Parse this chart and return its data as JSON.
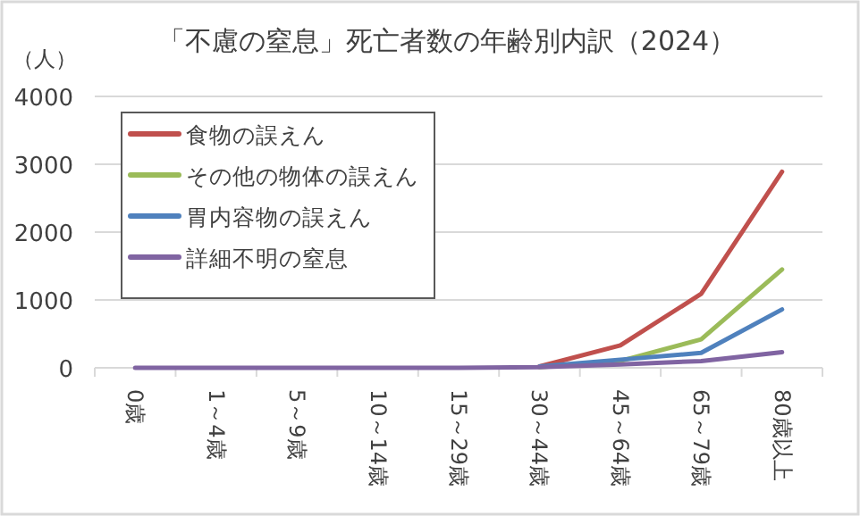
{
  "chart_data": {
    "type": "line",
    "title": "「不慮の窒息」死亡者数の年齢別内訳（2024）",
    "ylabel": "（人）",
    "categories": [
      "0歳",
      "1～4歳",
      "5～9歳",
      "10～14歳",
      "15～29歳",
      "30～44歳",
      "45～64歳",
      "65～79歳",
      "80歳以上"
    ],
    "series": [
      {
        "name": "食物の誤えん",
        "color": "#c0504d",
        "values": [
          null,
          null,
          null,
          null,
          null,
          20,
          330,
          1090,
          2890
        ]
      },
      {
        "name": "その他の物体の誤えん",
        "color": "#9bbb59",
        "values": [
          null,
          null,
          null,
          null,
          null,
          10,
          100,
          420,
          1450
        ]
      },
      {
        "name": "胃内容物の誤えん",
        "color": "#4f81bd",
        "values": [
          null,
          null,
          null,
          null,
          null,
          20,
          120,
          220,
          860
        ]
      },
      {
        "name": "詳細不明の窒息",
        "color": "#8064a2",
        "values": [
          0,
          0,
          0,
          0,
          0,
          10,
          50,
          100,
          230
        ]
      }
    ],
    "ylim": [
      0,
      4000
    ],
    "yticks": [
      0,
      1000,
      2000,
      3000,
      4000
    ],
    "grid": "y",
    "legend": "top left",
    "marker": "none",
    "line_style": "solid"
  }
}
